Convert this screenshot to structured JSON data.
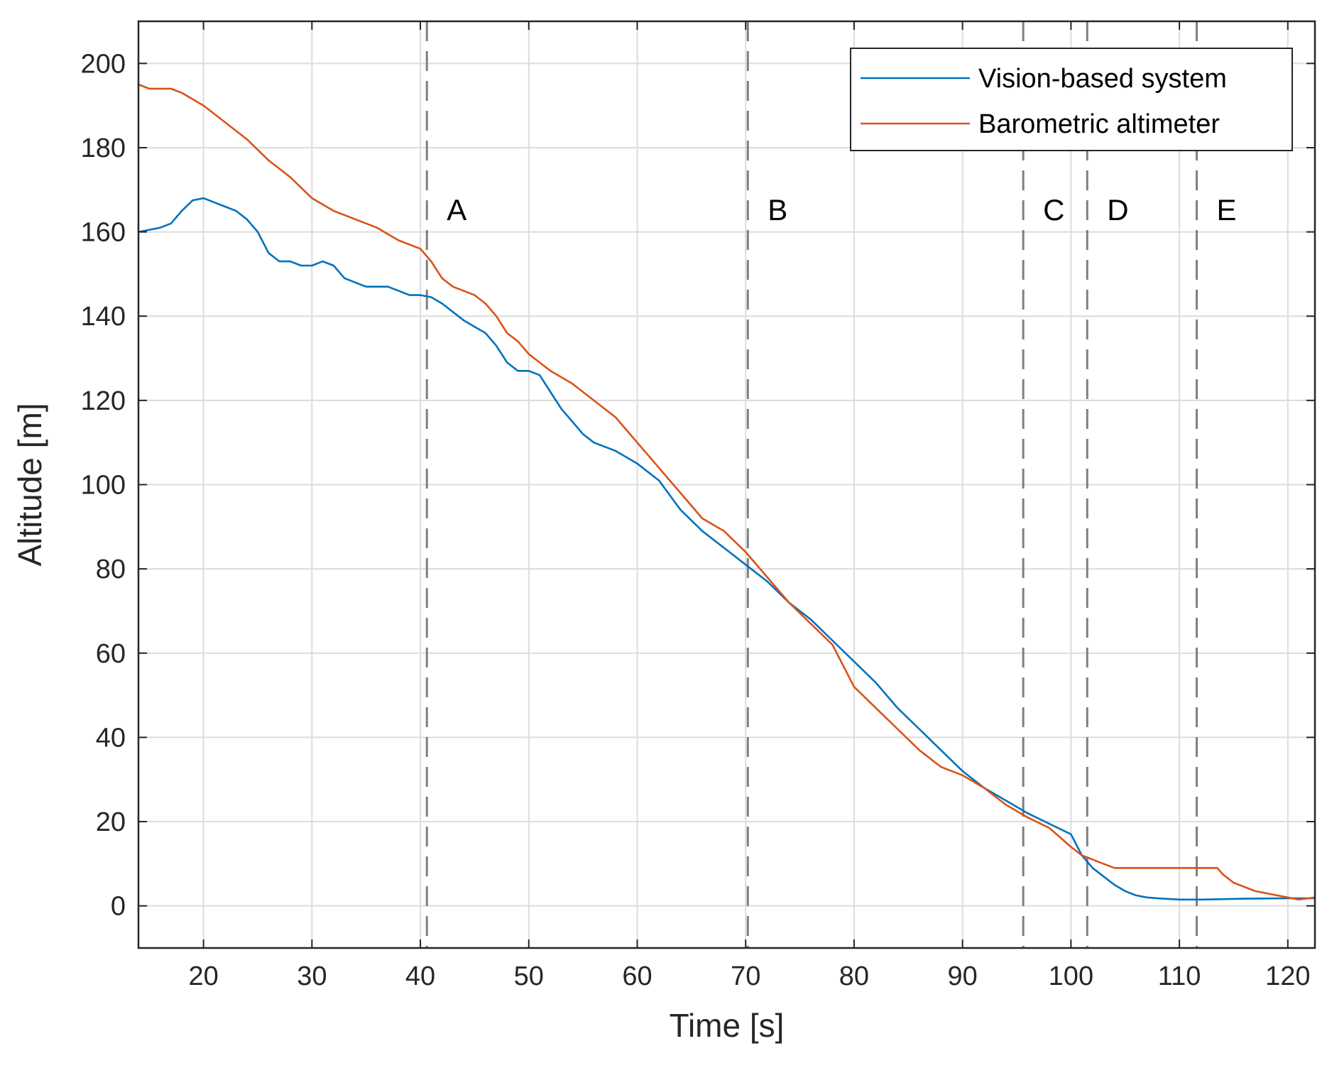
{
  "chart_data": {
    "type": "line",
    "title": "",
    "xlabel": "Time [s]",
    "ylabel": "Altitude [m]",
    "xlim": [
      14,
      122.5
    ],
    "ylim": [
      -10,
      210
    ],
    "xticks": [
      20,
      30,
      40,
      50,
      60,
      70,
      80,
      90,
      100,
      110,
      120
    ],
    "yticks": [
      0,
      20,
      40,
      60,
      80,
      100,
      120,
      140,
      160,
      180,
      200
    ],
    "grid": true,
    "legend": {
      "position": "top-right"
    },
    "colors": {
      "grid": "#dcdcdc",
      "axis": "#262626",
      "phase_line": "#7f7f7f"
    },
    "series": [
      {
        "name": "Vision-based system",
        "color": "#0072BD",
        "x": [
          14,
          15,
          16,
          17,
          18,
          19,
          20,
          21,
          22,
          23,
          24,
          25,
          26,
          27,
          28,
          29,
          30,
          31,
          32,
          33,
          34,
          35,
          36,
          37,
          38,
          39,
          40,
          41,
          42,
          43,
          44,
          45,
          46,
          47,
          48,
          49,
          50,
          51,
          52,
          53,
          54,
          55,
          56,
          58,
          60,
          62,
          64,
          66,
          68,
          70,
          72,
          74,
          76,
          78,
          80,
          82,
          84,
          86,
          88,
          90,
          92,
          94,
          96,
          98,
          100,
          101,
          102,
          103,
          104,
          105,
          106,
          107,
          108,
          110,
          112,
          116,
          120,
          122.5
        ],
        "values": [
          160,
          160.5,
          161,
          162,
          165,
          167.5,
          168,
          167,
          166,
          165,
          163,
          160,
          155,
          153,
          153,
          152,
          152,
          153,
          152,
          149,
          148,
          147,
          147,
          147,
          146,
          145,
          145,
          144.5,
          143,
          141,
          139,
          137.5,
          136,
          133,
          129,
          127,
          127,
          126,
          122,
          118,
          115,
          112,
          110,
          108,
          105,
          101,
          94,
          89,
          85,
          81,
          77,
          72,
          68,
          63,
          58,
          53,
          47,
          42,
          37,
          32,
          28,
          25,
          22,
          19.5,
          17,
          12,
          9,
          7,
          5,
          3.5,
          2.5,
          2,
          1.8,
          1.5,
          1.5,
          1.7,
          1.8,
          1.8
        ]
      },
      {
        "name": "Barometric altimeter",
        "color": "#D95319",
        "x": [
          14,
          15,
          17,
          18,
          20,
          22,
          24,
          26,
          28,
          30,
          32,
          34,
          35,
          36,
          38,
          40,
          41,
          42,
          43,
          45,
          46,
          47,
          48,
          49,
          50,
          51,
          52,
          54,
          56,
          58,
          60,
          62,
          64,
          66,
          68,
          70,
          72,
          74,
          76,
          78,
          80,
          82,
          84,
          86,
          88,
          90,
          92,
          94,
          96,
          98,
          100,
          101,
          102,
          103,
          104,
          106,
          108,
          110,
          112,
          113,
          113.5,
          114,
          115,
          116,
          117,
          118,
          119,
          120,
          121,
          122.5
        ],
        "values": [
          195,
          194,
          194,
          193,
          190,
          186,
          182,
          177,
          173,
          168,
          165,
          163,
          162,
          161,
          158,
          156,
          153,
          149,
          147,
          145,
          143,
          140,
          136,
          134,
          131,
          129,
          127,
          124,
          120,
          116,
          110,
          104,
          98,
          92,
          89,
          84,
          78,
          72,
          67,
          62,
          52,
          47,
          42,
          37,
          33,
          31,
          28,
          24,
          21,
          18.5,
          14,
          12,
          11,
          10,
          9,
          9,
          9,
          9,
          9,
          9,
          9,
          7.5,
          5.5,
          4.5,
          3.5,
          3,
          2.5,
          2,
          1.5,
          2
        ]
      }
    ],
    "phase_lines": [
      {
        "label": "A",
        "x": 40.6
      },
      {
        "label": "B",
        "x": 70.2
      },
      {
        "label": "C",
        "x": 95.6
      },
      {
        "label": "D",
        "x": 101.5
      },
      {
        "label": "E",
        "x": 111.6
      }
    ]
  }
}
